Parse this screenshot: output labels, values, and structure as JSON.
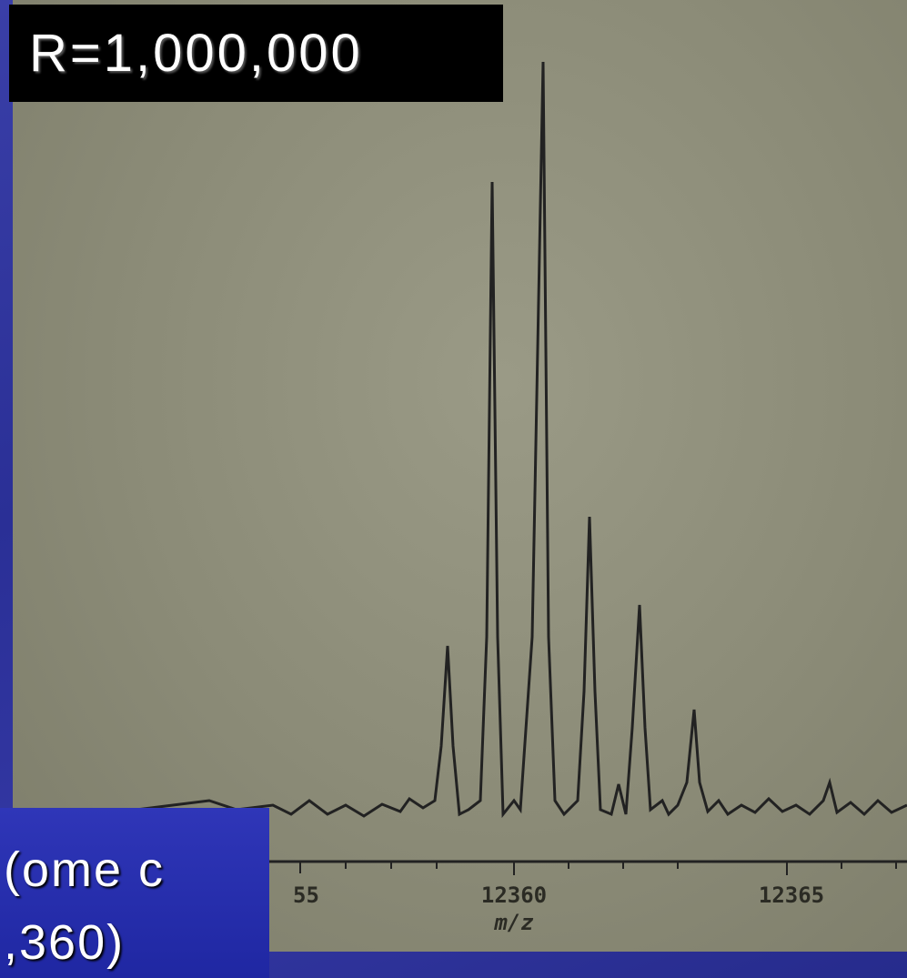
{
  "header": {
    "label": "R=1,000,000"
  },
  "caption": {
    "lines": [
      "(ome c",
      ",360)"
    ]
  },
  "spectrum": {
    "tick_labels": [
      "55",
      "12360",
      "12365"
    ],
    "axis_label": "m/z"
  }
}
